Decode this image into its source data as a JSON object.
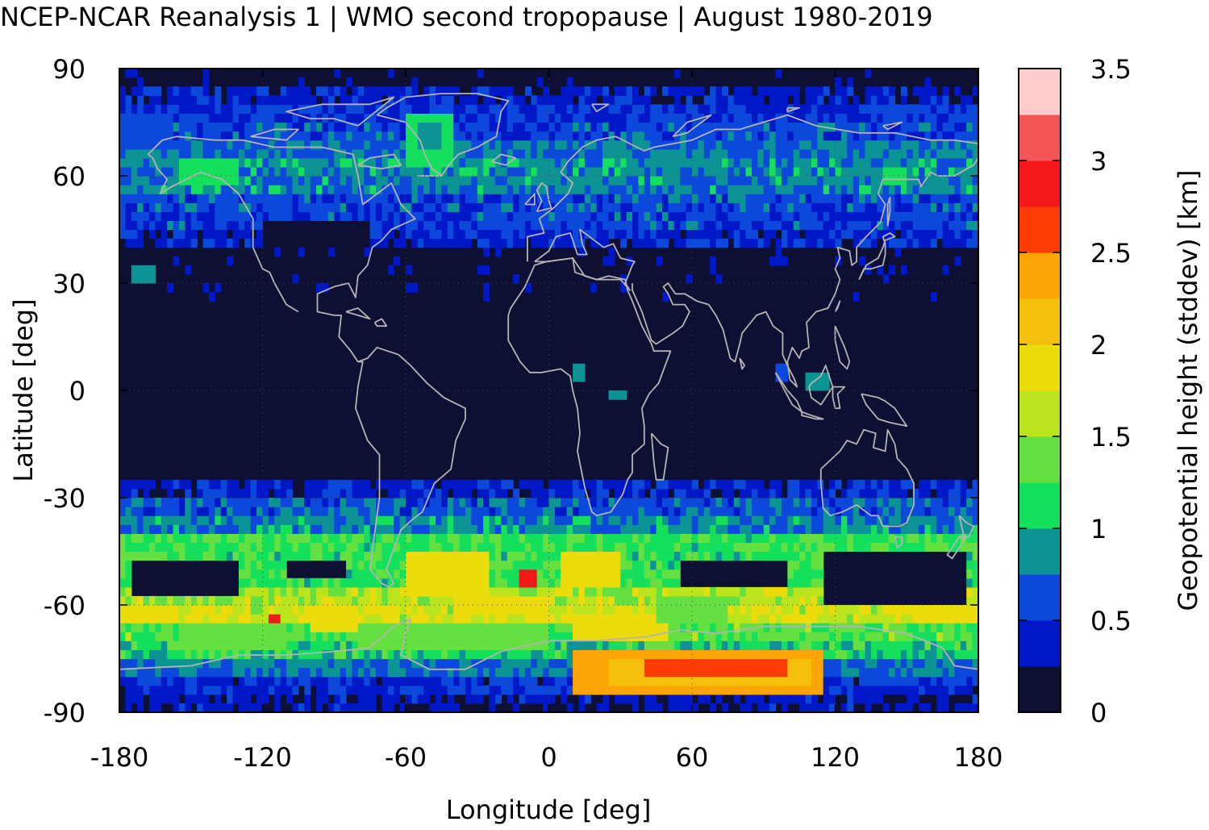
{
  "chart_data": {
    "type": "heatmap",
    "title": "NCEP-NCAR Reanalysis 1 | WMO second tropopause | August 1980-2019",
    "xlabel": "Longitude [deg]",
    "ylabel": "Latitude [deg]",
    "colorbar_label": "Geopotential height (stddev) [km]",
    "xlim": [
      -180,
      180
    ],
    "ylim": [
      -90,
      90
    ],
    "xticks": [
      -180,
      -120,
      -60,
      0,
      60,
      120,
      180
    ],
    "yticks": [
      90,
      60,
      30,
      0,
      -30,
      -60,
      -90
    ],
    "colorbar_range": [
      0,
      3.5
    ],
    "colorbar_ticks": [
      "0",
      "0.5",
      "1",
      "1.5",
      "2",
      "2.5",
      "3",
      "3.5"
    ],
    "colorbar_colors": [
      "#0d0f33",
      "#0018c8",
      "#0c48dc",
      "#0c9494",
      "#14e05c",
      "#64e040",
      "#bce41c",
      "#ecdc0c",
      "#f4c00c",
      "#fca404",
      "#fc3c04",
      "#f41818",
      "#f25656",
      "#ffcccc"
    ],
    "grid": true,
    "coastlines": "gray",
    "zonal_profile": [
      {
        "lat": -87.5,
        "value": 0.3
      },
      {
        "lat": -82.5,
        "value": 0.45
      },
      {
        "lat": -77.5,
        "value": 0.75
      },
      {
        "lat": -72.5,
        "value": 1.1
      },
      {
        "lat": -67.5,
        "value": 1.3
      },
      {
        "lat": -62.5,
        "value": 1.7
      },
      {
        "lat": -57.5,
        "value": 1.6
      },
      {
        "lat": -52.5,
        "value": 1.2
      },
      {
        "lat": -47.5,
        "value": 1.2
      },
      {
        "lat": -42.5,
        "value": 1.2
      },
      {
        "lat": -37.5,
        "value": 0.85
      },
      {
        "lat": -32.5,
        "value": 0.65
      },
      {
        "lat": -27.5,
        "value": 0.4
      },
      {
        "lat": -22.5,
        "value": 0.1
      },
      {
        "lat": -17.5,
        "value": 0.05
      },
      {
        "lat": 17.5,
        "value": 0.05
      },
      {
        "lat": 32.5,
        "value": 0.05
      },
      {
        "lat": 37.5,
        "value": 0.05
      },
      {
        "lat": 42.5,
        "value": 0.4
      },
      {
        "lat": 47.5,
        "value": 0.55
      },
      {
        "lat": 52.5,
        "value": 0.6
      },
      {
        "lat": 57.5,
        "value": 0.8
      },
      {
        "lat": 62.5,
        "value": 0.85
      },
      {
        "lat": 67.5,
        "value": 0.75
      },
      {
        "lat": 72.5,
        "value": 0.6
      },
      {
        "lat": 77.5,
        "value": 0.5
      },
      {
        "lat": 82.5,
        "value": 0.35
      },
      {
        "lat": 87.5,
        "value": 0.05
      }
    ],
    "anomalies": [
      {
        "lon": [
          10,
          115
        ],
        "lat": [
          -85,
          -72
        ],
        "value": 2.45
      },
      {
        "lon": [
          25,
          110
        ],
        "lat": [
          -82,
          -74
        ],
        "value": 2.1
      },
      {
        "lon": [
          40,
          100
        ],
        "lat": [
          -81,
          -76
        ],
        "value": 2.65
      },
      {
        "lon": [
          -175,
          -130
        ],
        "lat": [
          -58,
          -47
        ],
        "value": 0.05
      },
      {
        "lon": [
          115,
          175
        ],
        "lat": [
          -60,
          -46
        ],
        "value": 0.05
      },
      {
        "lon": [
          55,
          100
        ],
        "lat": [
          -55,
          -47
        ],
        "value": 0.05
      },
      {
        "lon": [
          -110,
          -85
        ],
        "lat": [
          -52,
          -47
        ],
        "value": 0.1
      },
      {
        "lon": [
          -60,
          -25
        ],
        "lat": [
          -58,
          -45
        ],
        "value": 1.9
      },
      {
        "lon": [
          5,
          30
        ],
        "lat": [
          -55,
          -45
        ],
        "value": 1.9
      },
      {
        "lon": [
          -12,
          -5
        ],
        "lat": [
          -55,
          -51
        ],
        "value": 2.8
      },
      {
        "lon": [
          -118,
          -112
        ],
        "lat": [
          -66,
          -62
        ],
        "value": 2.8
      },
      {
        "lon": [
          -100,
          -80
        ],
        "lat": [
          -68,
          -60
        ],
        "value": 1.9
      },
      {
        "lon": [
          10,
          50
        ],
        "lat": [
          -70,
          -62
        ],
        "value": 1.9
      },
      {
        "lon": [
          45,
          75
        ],
        "lat": [
          -65,
          -58
        ],
        "value": 1.3
      },
      {
        "lon": [
          -20,
          0
        ],
        "lat": [
          -72,
          -65
        ],
        "value": 1.3
      },
      {
        "lon": [
          -40,
          0
        ],
        "lat": [
          -62,
          -58
        ],
        "value": 1.9
      },
      {
        "lon": [
          155,
          180
        ],
        "lat": [
          -66,
          -60
        ],
        "value": 1.75
      },
      {
        "lon": [
          -180,
          -155
        ],
        "lat": [
          -66,
          -60
        ],
        "value": 1.75
      },
      {
        "lon": [
          -155,
          -110
        ],
        "lat": [
          -72,
          -65
        ],
        "value": 1.3
      },
      {
        "lon": [
          -80,
          -20
        ],
        "lat": [
          -72,
          -65
        ],
        "value": 1.3
      },
      {
        "lon": [
          -155,
          -130
        ],
        "lat": [
          57,
          66
        ],
        "value": 1.15
      },
      {
        "lon": [
          -60,
          -40
        ],
        "lat": [
          62,
          78
        ],
        "value": 1.15
      },
      {
        "lon": [
          -55,
          -45
        ],
        "lat": [
          67,
          75
        ],
        "value": 0.85
      },
      {
        "lon": [
          140,
          150
        ],
        "lat": [
          57,
          62
        ],
        "value": 1.15
      },
      {
        "lon": [
          -180,
          -160
        ],
        "lat": [
          68,
          78
        ],
        "value": 0.55
      },
      {
        "lon": [
          -120,
          -75
        ],
        "lat": [
          40,
          47
        ],
        "value": 0.05
      },
      {
        "lon": [
          -175,
          -165
        ],
        "lat": [
          30,
          35
        ],
        "value": 0.75
      },
      {
        "lon": [
          10,
          14
        ],
        "lat": [
          3,
          7
        ],
        "value": 0.75
      },
      {
        "lon": [
          26,
          32
        ],
        "lat": [
          -3,
          1
        ],
        "value": 0.85
      },
      {
        "lon": [
          108,
          118
        ],
        "lat": [
          0,
          6
        ],
        "value": 0.85
      },
      {
        "lon": [
          95,
          100
        ],
        "lat": [
          3,
          7
        ],
        "value": 0.55
      }
    ]
  }
}
